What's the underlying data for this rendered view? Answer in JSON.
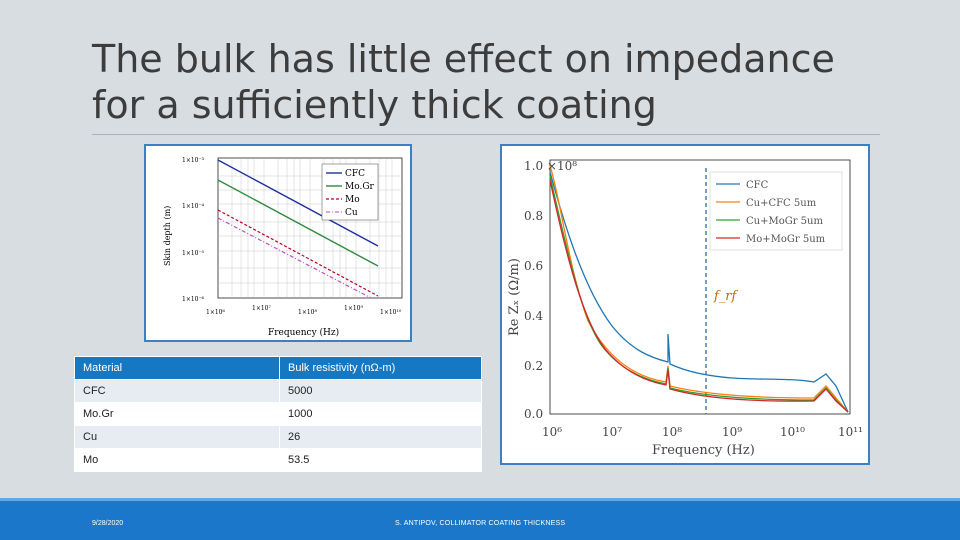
{
  "slide": {
    "title_line1": "The bulk has little effect on impedance",
    "title_line2": "for a sufficiently thick coating"
  },
  "left_chart": {
    "ylabel": "Skin depth (m)",
    "xlabel": "Frequency (Hz)",
    "y_ticks": [
      "1×10⁻³",
      "1×10⁻⁴",
      "1×10⁻⁵",
      "1×10⁻⁶"
    ],
    "x_ticks": [
      "1×10⁶",
      "1×10⁷",
      "1×10⁸",
      "1×10⁹",
      "1×10¹⁰"
    ],
    "legend": [
      "CFC",
      "Mo.Gr",
      "Mo",
      "Cu"
    ]
  },
  "right_chart": {
    "scale_label": "1.0 ×10⁸",
    "y_ticks": [
      "0.8",
      "0.6",
      "0.4",
      "0.2",
      "0.0"
    ],
    "ylabel": "Re Zₓ (Ω/m)",
    "x_ticks": [
      "10⁶",
      "10⁷",
      "10⁸",
      "10⁹",
      "10¹⁰",
      "10¹¹"
    ],
    "xlabel": "Frequency (Hz)",
    "legend": [
      "CFC",
      "Cu+CFC 5um",
      "Cu+MoGr 5um",
      "Mo+MoGr 5um"
    ],
    "annotation": "f_rf"
  },
  "table": {
    "headers": [
      "Material",
      "Bulk resistivity (nΩ-m)"
    ],
    "rows": [
      [
        "CFC",
        "5000"
      ],
      [
        "Mo.Gr",
        "1000"
      ],
      [
        "Cu",
        "26"
      ],
      [
        "Mo",
        "53.5"
      ]
    ]
  },
  "footer": {
    "date": "9/28/2020",
    "credit": "S. ANTIPOV, COLLIMATOR COATING THICKNESS"
  },
  "colors": {
    "footer": "#1a77c9",
    "table_header": "#1678c2",
    "card_border": "#3b7fc4",
    "series_cfc": "#1f77b4",
    "series_cu_cfc": "#ff7f0e",
    "series_cu_mogr": "#2ca02c",
    "series_mo_mogr": "#d62728"
  }
}
